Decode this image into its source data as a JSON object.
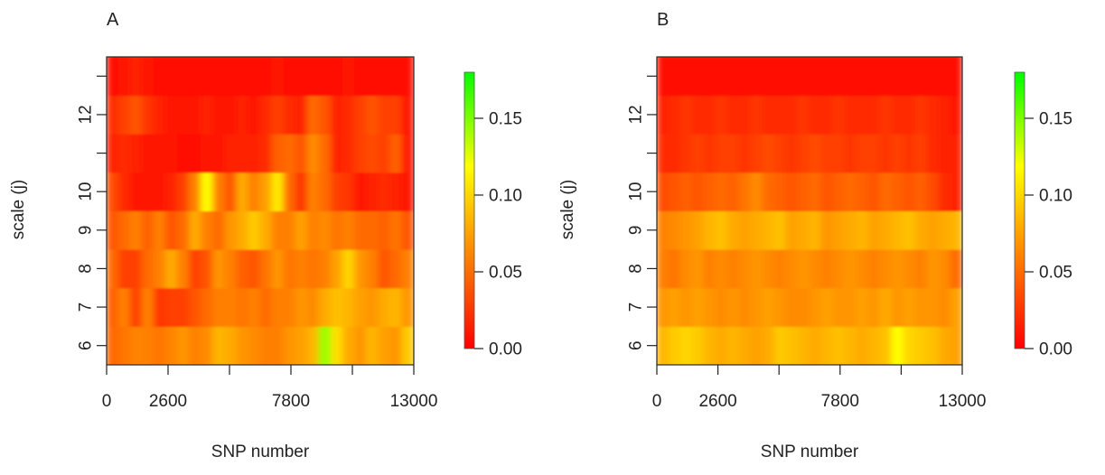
{
  "chart_data": [
    {
      "type": "heatmap",
      "panel": "A",
      "xlabel": "SNP number",
      "ylabel": "scale (j)",
      "xlim": [
        0,
        13000
      ],
      "x_ticks": [
        0,
        2600,
        5200,
        7800,
        10400,
        13000
      ],
      "x_tick_labels": [
        "0",
        "2600",
        "",
        "7800",
        "",
        "13000"
      ],
      "y_rows": [
        6,
        7,
        8,
        9,
        10,
        11,
        12,
        13
      ],
      "y_tick_labels": [
        "6",
        "7",
        "8",
        "9",
        "10",
        "",
        "12",
        ""
      ],
      "colorbar": {
        "min": 0.0,
        "max": 0.18,
        "ticks": [
          0.0,
          0.05,
          0.1,
          0.15
        ],
        "tick_labels": [
          "0.00",
          "0.05",
          "0.10",
          "0.15"
        ]
      },
      "colormap": [
        "#ff0000",
        "#ff8000",
        "#ffff00",
        "#00ff00"
      ],
      "ncols": 26,
      "values": [
        [
          0.048,
          0.055,
          0.062,
          0.06,
          0.055,
          0.062,
          0.07,
          0.06,
          0.065,
          0.085,
          0.08,
          0.07,
          0.065,
          0.06,
          0.06,
          0.07,
          0.075,
          0.085,
          0.145,
          0.105,
          0.08,
          0.07,
          0.085,
          0.075,
          0.07,
          0.095
        ],
        [
          0.045,
          0.06,
          0.03,
          0.06,
          0.025,
          0.03,
          0.03,
          0.04,
          0.05,
          0.06,
          0.06,
          0.055,
          0.06,
          0.05,
          0.06,
          0.06,
          0.07,
          0.065,
          0.08,
          0.09,
          0.085,
          0.075,
          0.07,
          0.08,
          0.085,
          0.07
        ],
        [
          0.05,
          0.03,
          0.03,
          0.05,
          0.06,
          0.08,
          0.06,
          0.03,
          0.04,
          0.07,
          0.06,
          0.045,
          0.04,
          0.055,
          0.07,
          0.055,
          0.06,
          0.055,
          0.06,
          0.075,
          0.1,
          0.07,
          0.06,
          0.04,
          0.05,
          0.06
        ],
        [
          0.04,
          0.05,
          0.06,
          0.045,
          0.06,
          0.04,
          0.05,
          0.08,
          0.06,
          0.05,
          0.07,
          0.08,
          0.095,
          0.08,
          0.06,
          0.06,
          0.075,
          0.06,
          0.065,
          0.055,
          0.06,
          0.05,
          0.05,
          0.045,
          0.055,
          0.04
        ],
        [
          0.035,
          0.02,
          0.01,
          0.01,
          0.01,
          0.015,
          0.03,
          0.06,
          0.12,
          0.06,
          0.04,
          0.08,
          0.06,
          0.075,
          0.11,
          0.05,
          0.025,
          0.06,
          0.05,
          0.03,
          0.025,
          0.01,
          0.015,
          0.02,
          0.015,
          0.01
        ],
        [
          0.015,
          0.02,
          0.015,
          0.01,
          0.01,
          0.01,
          0.005,
          0.005,
          0.01,
          0.01,
          0.015,
          0.015,
          0.015,
          0.02,
          0.045,
          0.05,
          0.04,
          0.065,
          0.05,
          0.015,
          0.02,
          0.03,
          0.035,
          0.03,
          0.045,
          0.01
        ],
        [
          0.02,
          0.03,
          0.04,
          0.025,
          0.015,
          0.01,
          0.01,
          0.01,
          0.015,
          0.01,
          0.01,
          0.015,
          0.01,
          0.02,
          0.03,
          0.02,
          0.015,
          0.05,
          0.04,
          0.015,
          0.02,
          0.03,
          0.04,
          0.03,
          0.03,
          0.01
        ],
        [
          0.005,
          0.01,
          0.015,
          0.01,
          0.005,
          0.005,
          0.005,
          0.005,
          0.005,
          0.005,
          0.005,
          0.005,
          0.005,
          0.005,
          0.01,
          0.005,
          0.005,
          0.005,
          0.005,
          0.005,
          0.01,
          0.005,
          0.005,
          0.005,
          0.005,
          0.005
        ]
      ]
    },
    {
      "type": "heatmap",
      "panel": "B",
      "xlabel": "SNP number",
      "ylabel": "scale (j)",
      "xlim": [
        0,
        13000
      ],
      "x_ticks": [
        0,
        2600,
        5200,
        7800,
        10400,
        13000
      ],
      "x_tick_labels": [
        "0",
        "2600",
        "",
        "7800",
        "",
        "13000"
      ],
      "y_rows": [
        6,
        7,
        8,
        9,
        10,
        11,
        12,
        13
      ],
      "y_tick_labels": [
        "6",
        "7",
        "8",
        "9",
        "10",
        "",
        "12",
        ""
      ],
      "colorbar": {
        "min": 0.0,
        "max": 0.18,
        "ticks": [
          0.0,
          0.05,
          0.1,
          0.15
        ],
        "tick_labels": [
          "0.00",
          "0.05",
          "0.10",
          "0.15"
        ]
      },
      "colormap": [
        "#ff0000",
        "#ff8000",
        "#ffff00",
        "#00ff00"
      ],
      "ncols": 26,
      "values": [
        [
          0.085,
          0.095,
          0.1,
          0.095,
          0.085,
          0.08,
          0.085,
          0.08,
          0.075,
          0.08,
          0.095,
          0.09,
          0.085,
          0.08,
          0.085,
          0.09,
          0.085,
          0.08,
          0.085,
          0.09,
          0.12,
          0.1,
          0.095,
          0.09,
          0.08,
          0.075
        ],
        [
          0.07,
          0.075,
          0.07,
          0.075,
          0.07,
          0.065,
          0.07,
          0.065,
          0.07,
          0.075,
          0.07,
          0.065,
          0.065,
          0.07,
          0.075,
          0.07,
          0.07,
          0.075,
          0.07,
          0.08,
          0.07,
          0.075,
          0.07,
          0.07,
          0.065,
          0.075
        ],
        [
          0.06,
          0.055,
          0.065,
          0.07,
          0.06,
          0.065,
          0.06,
          0.065,
          0.07,
          0.065,
          0.06,
          0.065,
          0.07,
          0.065,
          0.06,
          0.065,
          0.07,
          0.065,
          0.06,
          0.065,
          0.07,
          0.065,
          0.06,
          0.07,
          0.065,
          0.05
        ],
        [
          0.06,
          0.065,
          0.07,
          0.075,
          0.085,
          0.09,
          0.08,
          0.075,
          0.08,
          0.085,
          0.09,
          0.075,
          0.08,
          0.085,
          0.07,
          0.075,
          0.08,
          0.085,
          0.075,
          0.08,
          0.085,
          0.09,
          0.08,
          0.075,
          0.08,
          0.085
        ],
        [
          0.035,
          0.04,
          0.045,
          0.04,
          0.045,
          0.05,
          0.045,
          0.055,
          0.065,
          0.05,
          0.045,
          0.04,
          0.045,
          0.05,
          0.04,
          0.045,
          0.05,
          0.045,
          0.04,
          0.05,
          0.045,
          0.04,
          0.045,
          0.035,
          0.02,
          0.015
        ],
        [
          0.02,
          0.02,
          0.025,
          0.03,
          0.025,
          0.03,
          0.03,
          0.025,
          0.03,
          0.035,
          0.03,
          0.025,
          0.03,
          0.035,
          0.03,
          0.03,
          0.025,
          0.03,
          0.03,
          0.025,
          0.03,
          0.025,
          0.03,
          0.02,
          0.015,
          0.015
        ],
        [
          0.015,
          0.02,
          0.025,
          0.02,
          0.02,
          0.025,
          0.02,
          0.02,
          0.025,
          0.02,
          0.02,
          0.02,
          0.025,
          0.02,
          0.02,
          0.025,
          0.02,
          0.02,
          0.02,
          0.025,
          0.02,
          0.02,
          0.025,
          0.02,
          0.015,
          0.01
        ],
        [
          0.005,
          0.005,
          0.005,
          0.005,
          0.005,
          0.005,
          0.005,
          0.005,
          0.005,
          0.005,
          0.005,
          0.005,
          0.005,
          0.005,
          0.005,
          0.005,
          0.005,
          0.005,
          0.005,
          0.005,
          0.005,
          0.005,
          0.005,
          0.005,
          0.005,
          0.005
        ]
      ]
    }
  ]
}
